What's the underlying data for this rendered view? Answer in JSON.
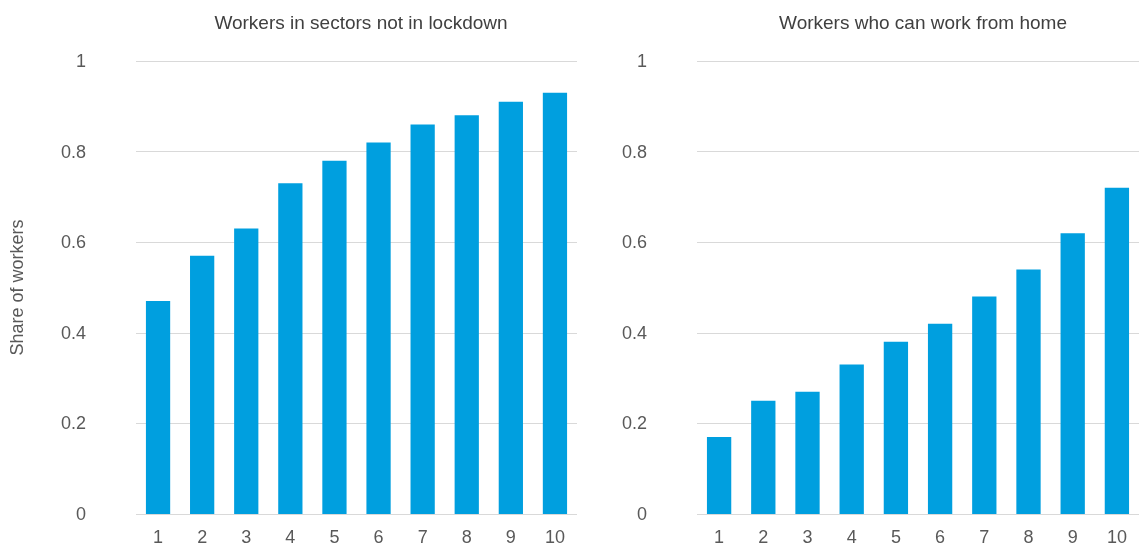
{
  "chart_data": [
    {
      "type": "bar",
      "title": "Workers in sectors not in lockdown",
      "ylabel": "Share of workers",
      "categories": [
        "1",
        "2",
        "3",
        "4",
        "5",
        "6",
        "7",
        "8",
        "9",
        "10"
      ],
      "values": [
        0.47,
        0.57,
        0.63,
        0.73,
        0.78,
        0.82,
        0.86,
        0.88,
        0.91,
        0.93
      ],
      "color": "#009fdf",
      "ylim": [
        0,
        1
      ],
      "yticks": [
        0,
        0.2,
        0.4,
        0.6,
        0.8,
        1
      ],
      "grid": "y"
    },
    {
      "type": "bar",
      "title": "Workers who can work from home",
      "categories": [
        "1",
        "2",
        "3",
        "4",
        "5",
        "6",
        "7",
        "8",
        "9",
        "10"
      ],
      "values": [
        0.17,
        0.25,
        0.27,
        0.33,
        0.38,
        0.42,
        0.48,
        0.54,
        0.62,
        0.72
      ],
      "color": "#009fdf",
      "ylim": [
        0,
        1
      ],
      "yticks": [
        0,
        0.2,
        0.4,
        0.6,
        0.8,
        1
      ],
      "grid": "y"
    }
  ]
}
